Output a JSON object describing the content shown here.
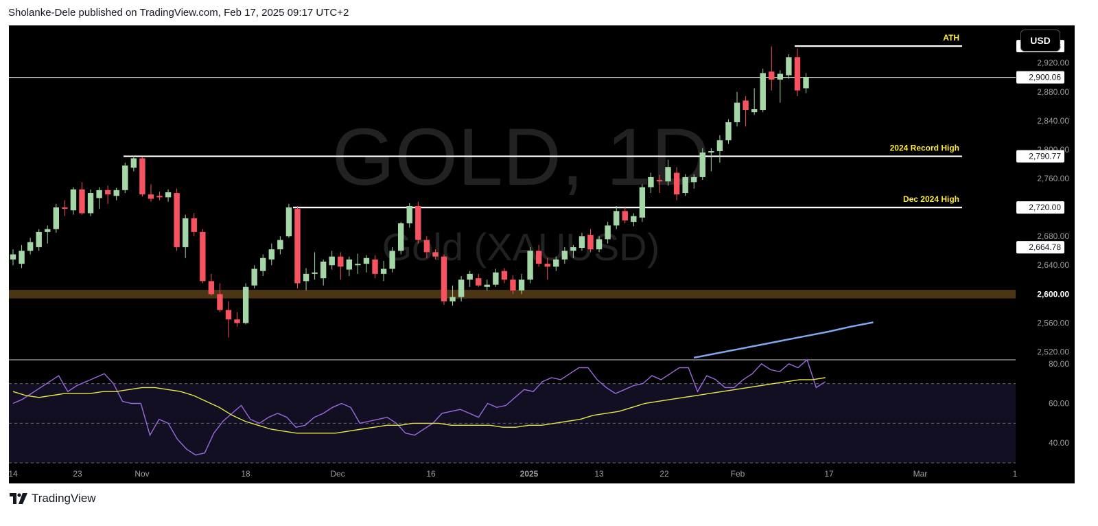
{
  "header": {
    "text": "Sholanke-Dele published on TradingView.com, Feb 17, 2025 09:17 UTC+2"
  },
  "currency_button": "USD",
  "watermark": {
    "title": "GOLD, 1D",
    "subtitle": "Gold (XAUUSD)"
  },
  "footer": {
    "brand": "TradingView"
  },
  "colors": {
    "up": "#a5d6a7",
    "down": "#f7525f",
    "background": "#000000",
    "level_line": "#ffffff",
    "label_yellow": "#ffeb3b",
    "rsi_line": "#9c6be0",
    "rsi_ma": "#e8e84a",
    "sma": "#7fa9ee",
    "zone": "#4a3414"
  },
  "chart_data": [
    {
      "type": "candlestick",
      "title": "GOLD, 1D",
      "ylim": [
        2510,
        2972
      ],
      "y_ticks": [
        "2,920.00",
        "2,880.00",
        "2,840.00",
        "2,800.00",
        "2,760.00",
        "2,680.00",
        "2,640.00",
        "2,560.00",
        "2,520.00"
      ],
      "x_ticks": [
        "14",
        "23",
        "Nov",
        "18",
        "Dec",
        "16",
        "2025",
        "13",
        "22",
        "Feb",
        "17",
        "Mar",
        "1"
      ],
      "price_labels": [
        {
          "text": "2,943.38",
          "value": 2943.38
        },
        {
          "text": "2,900.06",
          "value": 2900.06
        },
        {
          "text": "2,790.77",
          "value": 2790.77
        },
        {
          "text": "2,720.00",
          "value": 2720.0
        },
        {
          "text": "2,664.78",
          "value": 2664.78
        },
        {
          "text": "2,600.00",
          "value": 2600.0
        }
      ],
      "levels": [
        {
          "label": "ATH",
          "value": 2943.38
        },
        {
          "label": "",
          "value": 2900.06
        },
        {
          "label": "2024 Record High",
          "value": 2790.77
        },
        {
          "label": "Dec 2024 High",
          "value": 2720.0
        }
      ],
      "support_zone": [
        2594,
        2606
      ],
      "candles": [
        {
          "o": 2648,
          "h": 2662,
          "l": 2640,
          "c": 2655
        },
        {
          "o": 2642,
          "h": 2668,
          "l": 2636,
          "c": 2660
        },
        {
          "o": 2660,
          "h": 2678,
          "l": 2655,
          "c": 2672
        },
        {
          "o": 2665,
          "h": 2690,
          "l": 2660,
          "c": 2686
        },
        {
          "o": 2686,
          "h": 2695,
          "l": 2670,
          "c": 2690
        },
        {
          "o": 2690,
          "h": 2725,
          "l": 2685,
          "c": 2720
        },
        {
          "o": 2720,
          "h": 2730,
          "l": 2708,
          "c": 2718
        },
        {
          "o": 2716,
          "h": 2748,
          "l": 2710,
          "c": 2745
        },
        {
          "o": 2745,
          "h": 2755,
          "l": 2710,
          "c": 2712
        },
        {
          "o": 2712,
          "h": 2745,
          "l": 2708,
          "c": 2740
        },
        {
          "o": 2733,
          "h": 2748,
          "l": 2718,
          "c": 2744
        },
        {
          "o": 2744,
          "h": 2750,
          "l": 2725,
          "c": 2738
        },
        {
          "o": 2736,
          "h": 2747,
          "l": 2730,
          "c": 2744
        },
        {
          "o": 2744,
          "h": 2782,
          "l": 2740,
          "c": 2778
        },
        {
          "o": 2775,
          "h": 2792,
          "l": 2770,
          "c": 2788
        },
        {
          "o": 2788,
          "h": 2790,
          "l": 2735,
          "c": 2738
        },
        {
          "o": 2738,
          "h": 2752,
          "l": 2728,
          "c": 2732
        },
        {
          "o": 2736,
          "h": 2742,
          "l": 2730,
          "c": 2734
        },
        {
          "o": 2734,
          "h": 2745,
          "l": 2728,
          "c": 2741
        },
        {
          "o": 2740,
          "h": 2746,
          "l": 2660,
          "c": 2665
        },
        {
          "o": 2665,
          "h": 2710,
          "l": 2650,
          "c": 2705
        },
        {
          "o": 2705,
          "h": 2712,
          "l": 2680,
          "c": 2686
        },
        {
          "o": 2686,
          "h": 2690,
          "l": 2615,
          "c": 2618
        },
        {
          "o": 2618,
          "h": 2628,
          "l": 2598,
          "c": 2600
        },
        {
          "o": 2600,
          "h": 2615,
          "l": 2575,
          "c": 2578
        },
        {
          "o": 2578,
          "h": 2590,
          "l": 2540,
          "c": 2565
        },
        {
          "o": 2565,
          "h": 2575,
          "l": 2555,
          "c": 2560
        },
        {
          "o": 2560,
          "h": 2615,
          "l": 2558,
          "c": 2610
        },
        {
          "o": 2612,
          "h": 2640,
          "l": 2608,
          "c": 2635
        },
        {
          "o": 2632,
          "h": 2655,
          "l": 2625,
          "c": 2650
        },
        {
          "o": 2648,
          "h": 2670,
          "l": 2640,
          "c": 2662
        },
        {
          "o": 2662,
          "h": 2680,
          "l": 2655,
          "c": 2675
        },
        {
          "o": 2680,
          "h": 2725,
          "l": 2678,
          "c": 2720
        },
        {
          "o": 2718,
          "h": 2722,
          "l": 2608,
          "c": 2615
        },
        {
          "o": 2618,
          "h": 2636,
          "l": 2605,
          "c": 2628
        },
        {
          "o": 2628,
          "h": 2658,
          "l": 2620,
          "c": 2630
        },
        {
          "o": 2622,
          "h": 2648,
          "l": 2612,
          "c": 2645
        },
        {
          "o": 2640,
          "h": 2660,
          "l": 2634,
          "c": 2652
        },
        {
          "o": 2652,
          "h": 2658,
          "l": 2620,
          "c": 2638
        },
        {
          "o": 2634,
          "h": 2652,
          "l": 2625,
          "c": 2648
        },
        {
          "o": 2640,
          "h": 2656,
          "l": 2628,
          "c": 2642
        },
        {
          "o": 2642,
          "h": 2654,
          "l": 2630,
          "c": 2650
        },
        {
          "o": 2648,
          "h": 2654,
          "l": 2622,
          "c": 2628
        },
        {
          "o": 2628,
          "h": 2646,
          "l": 2618,
          "c": 2635
        },
        {
          "o": 2635,
          "h": 2665,
          "l": 2630,
          "c": 2660
        },
        {
          "o": 2660,
          "h": 2700,
          "l": 2655,
          "c": 2698
        },
        {
          "o": 2698,
          "h": 2726,
          "l": 2692,
          "c": 2722
        },
        {
          "o": 2722,
          "h": 2728,
          "l": 2670,
          "c": 2675
        },
        {
          "o": 2675,
          "h": 2680,
          "l": 2650,
          "c": 2658
        },
        {
          "o": 2658,
          "h": 2662,
          "l": 2648,
          "c": 2652
        },
        {
          "o": 2652,
          "h": 2655,
          "l": 2585,
          "c": 2590
        },
        {
          "o": 2590,
          "h": 2612,
          "l": 2584,
          "c": 2596
        },
        {
          "o": 2596,
          "h": 2625,
          "l": 2590,
          "c": 2620
        },
        {
          "o": 2620,
          "h": 2632,
          "l": 2610,
          "c": 2628
        },
        {
          "o": 2622,
          "h": 2628,
          "l": 2610,
          "c": 2612
        },
        {
          "o": 2610,
          "h": 2620,
          "l": 2605,
          "c": 2613
        },
        {
          "o": 2613,
          "h": 2635,
          "l": 2610,
          "c": 2630
        },
        {
          "o": 2632,
          "h": 2636,
          "l": 2615,
          "c": 2620
        },
        {
          "o": 2620,
          "h": 2626,
          "l": 2600,
          "c": 2605
        },
        {
          "o": 2605,
          "h": 2628,
          "l": 2600,
          "c": 2620
        },
        {
          "o": 2620,
          "h": 2665,
          "l": 2615,
          "c": 2660
        },
        {
          "o": 2660,
          "h": 2668,
          "l": 2638,
          "c": 2642
        },
        {
          "o": 2642,
          "h": 2650,
          "l": 2620,
          "c": 2638
        },
        {
          "o": 2638,
          "h": 2652,
          "l": 2632,
          "c": 2648
        },
        {
          "o": 2648,
          "h": 2665,
          "l": 2642,
          "c": 2660
        },
        {
          "o": 2660,
          "h": 2668,
          "l": 2650,
          "c": 2665
        },
        {
          "o": 2664,
          "h": 2685,
          "l": 2660,
          "c": 2680
        },
        {
          "o": 2682,
          "h": 2690,
          "l": 2658,
          "c": 2662
        },
        {
          "o": 2662,
          "h": 2680,
          "l": 2658,
          "c": 2676
        },
        {
          "o": 2676,
          "h": 2700,
          "l": 2670,
          "c": 2695
        },
        {
          "o": 2695,
          "h": 2722,
          "l": 2690,
          "c": 2715
        },
        {
          "o": 2715,
          "h": 2720,
          "l": 2698,
          "c": 2702
        },
        {
          "o": 2700,
          "h": 2712,
          "l": 2694,
          "c": 2708
        },
        {
          "o": 2706,
          "h": 2752,
          "l": 2700,
          "c": 2748
        },
        {
          "o": 2748,
          "h": 2768,
          "l": 2740,
          "c": 2762
        },
        {
          "o": 2758,
          "h": 2765,
          "l": 2740,
          "c": 2756
        },
        {
          "o": 2756,
          "h": 2786,
          "l": 2750,
          "c": 2776
        },
        {
          "o": 2768,
          "h": 2776,
          "l": 2730,
          "c": 2738
        },
        {
          "o": 2740,
          "h": 2766,
          "l": 2736,
          "c": 2762
        },
        {
          "o": 2755,
          "h": 2766,
          "l": 2746,
          "c": 2762
        },
        {
          "o": 2762,
          "h": 2802,
          "l": 2758,
          "c": 2796
        },
        {
          "o": 2796,
          "h": 2802,
          "l": 2770,
          "c": 2798
        },
        {
          "o": 2798,
          "h": 2820,
          "l": 2782,
          "c": 2813
        },
        {
          "o": 2813,
          "h": 2842,
          "l": 2808,
          "c": 2838
        },
        {
          "o": 2838,
          "h": 2880,
          "l": 2832,
          "c": 2865
        },
        {
          "o": 2868,
          "h": 2874,
          "l": 2832,
          "c": 2855
        },
        {
          "o": 2852,
          "h": 2885,
          "l": 2848,
          "c": 2856
        },
        {
          "o": 2855,
          "h": 2912,
          "l": 2852,
          "c": 2906
        },
        {
          "o": 2908,
          "h": 2943,
          "l": 2882,
          "c": 2897
        },
        {
          "o": 2897,
          "h": 2910,
          "l": 2865,
          "c": 2905
        },
        {
          "o": 2903,
          "h": 2932,
          "l": 2898,
          "c": 2928
        },
        {
          "o": 2928,
          "h": 2940,
          "l": 2874,
          "c": 2882
        },
        {
          "o": 2885,
          "h": 2906,
          "l": 2878,
          "c": 2900
        }
      ],
      "moving_average": [
        2512,
        2518,
        2524,
        2530,
        2536,
        2542,
        2548,
        2555,
        2561
      ]
    },
    {
      "type": "line",
      "title": "RSI",
      "ylim": [
        29,
        82
      ],
      "y_ticks": [
        "80.00",
        "60.00",
        "40.00"
      ],
      "bands": [
        70,
        50,
        30
      ],
      "series": [
        {
          "values": [
            60,
            62,
            65,
            68,
            71,
            74,
            66,
            69,
            71,
            73,
            75,
            70,
            61,
            60,
            60,
            44,
            52,
            50,
            42,
            37,
            34,
            35,
            45,
            51,
            55,
            59,
            52,
            50,
            53,
            55,
            53,
            48,
            49,
            53,
            55,
            58,
            60,
            58,
            50,
            51,
            52,
            53,
            50,
            45,
            44,
            47,
            50,
            55,
            56,
            57,
            55,
            53,
            60,
            58,
            59,
            63,
            67,
            66,
            71,
            73,
            72,
            75,
            78,
            78,
            72,
            68,
            65,
            67,
            69,
            70,
            74,
            72,
            75,
            78,
            78,
            66,
            74,
            72,
            68,
            68,
            72,
            75,
            80,
            77,
            76,
            80,
            78,
            82,
            68,
            71
          ]
        },
        {
          "values": [
            66,
            64,
            63,
            64,
            65,
            65,
            65,
            66,
            66,
            67,
            68,
            68,
            67,
            66,
            64,
            61,
            58,
            54,
            51,
            49,
            47,
            46,
            45,
            45,
            45,
            45,
            46,
            47,
            48,
            49,
            49,
            50,
            50,
            50,
            49,
            49,
            49,
            49,
            48,
            48,
            49,
            49,
            50,
            51,
            52,
            54,
            55,
            56,
            58,
            60,
            61,
            62,
            63,
            64,
            65,
            66,
            67,
            68,
            69,
            70,
            71,
            72,
            72,
            73
          ]
        }
      ]
    }
  ]
}
